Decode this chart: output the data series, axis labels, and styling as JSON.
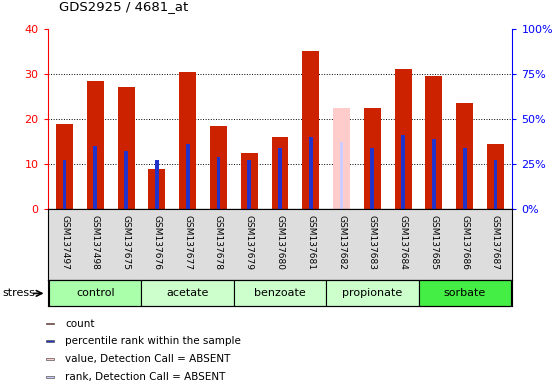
{
  "title": "GDS2925 / 4681_at",
  "samples": [
    "GSM137497",
    "GSM137498",
    "GSM137675",
    "GSM137676",
    "GSM137677",
    "GSM137678",
    "GSM137679",
    "GSM137680",
    "GSM137681",
    "GSM137682",
    "GSM137683",
    "GSM137684",
    "GSM137685",
    "GSM137686",
    "GSM137687"
  ],
  "count_values": [
    19.0,
    28.5,
    27.0,
    9.0,
    30.5,
    18.5,
    12.5,
    16.0,
    35.0,
    22.5,
    22.5,
    31.0,
    29.5,
    23.5,
    14.5
  ],
  "rank_values": [
    11.0,
    14.0,
    13.0,
    11.0,
    14.5,
    11.5,
    11.0,
    13.5,
    16.0,
    15.0,
    13.5,
    16.5,
    15.5,
    13.5,
    11.0
  ],
  "absent_flags": [
    false,
    false,
    false,
    false,
    false,
    false,
    false,
    false,
    false,
    true,
    false,
    false,
    false,
    false,
    false
  ],
  "groups": [
    {
      "name": "control",
      "indices": [
        0,
        1,
        2
      ],
      "color": "#aaffaa"
    },
    {
      "name": "acetate",
      "indices": [
        3,
        4,
        5
      ],
      "color": "#ccffcc"
    },
    {
      "name": "benzoate",
      "indices": [
        6,
        7,
        8
      ],
      "color": "#ccffcc"
    },
    {
      "name": "propionate",
      "indices": [
        9,
        10,
        11
      ],
      "color": "#ccffcc"
    },
    {
      "name": "sorbate",
      "indices": [
        12,
        13,
        14
      ],
      "color": "#44ee44"
    }
  ],
  "ylim_left": [
    0,
    40
  ],
  "ylim_right": [
    0,
    100
  ],
  "yticks_left": [
    0,
    10,
    20,
    30,
    40
  ],
  "yticks_right": [
    0,
    25,
    50,
    75,
    100
  ],
  "ytick_labels_right": [
    "0%",
    "25%",
    "50%",
    "75%",
    "100%"
  ],
  "bar_color_count": "#cc2200",
  "bar_color_rank": "#2233cc",
  "bar_color_absent_count": "#ffcccc",
  "bar_color_absent_rank": "#ccccff",
  "bar_width": 0.55,
  "rank_bar_width": 0.12,
  "bg_plot": "#ffffff",
  "bg_xlabels": "#dddddd",
  "stress_label": "stress",
  "legend_items": [
    {
      "color": "#cc2200",
      "label": "count"
    },
    {
      "color": "#2233cc",
      "label": "percentile rank within the sample"
    },
    {
      "color": "#ffcccc",
      "label": "value, Detection Call = ABSENT"
    },
    {
      "color": "#ccccff",
      "label": "rank, Detection Call = ABSENT"
    }
  ]
}
